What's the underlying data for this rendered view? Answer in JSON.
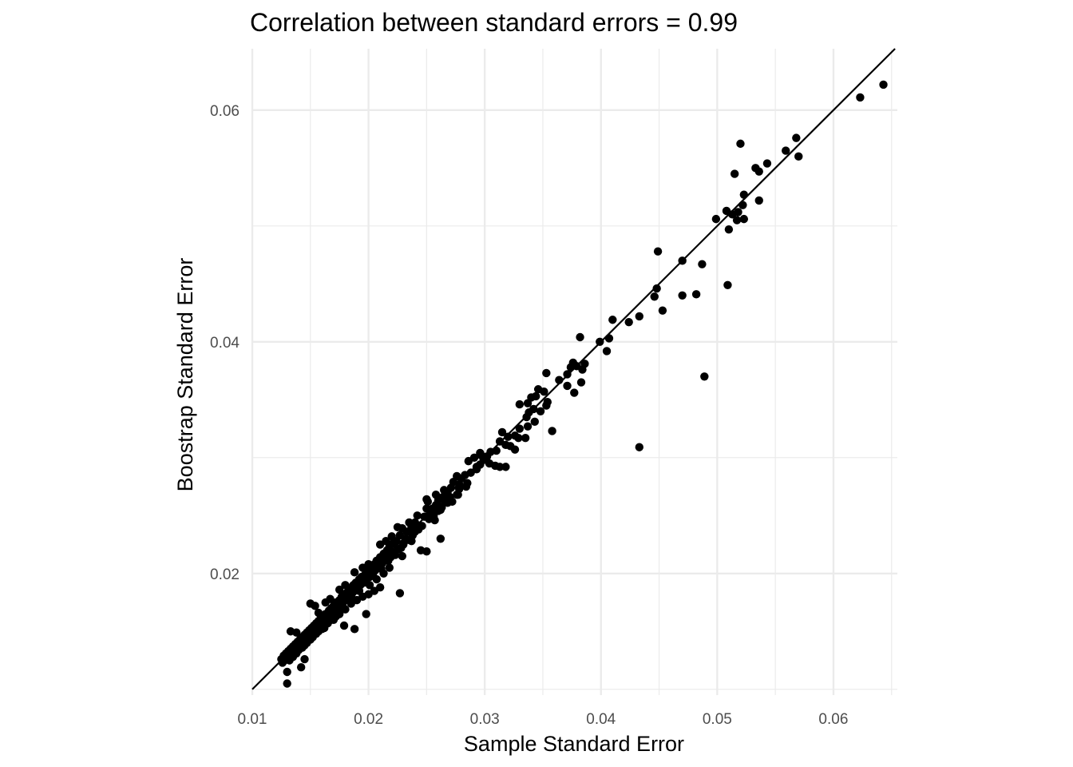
{
  "chart_data": {
    "type": "scatter",
    "title": "Correlation between standard errors = 0.99",
    "xlabel": "Sample Standard Error",
    "ylabel": "Boostrap Standard Error",
    "xlim": [
      0.01,
      0.0655
    ],
    "ylim": [
      0.0095,
      0.0653
    ],
    "x_ticks": [
      "0.01",
      "0.02",
      "0.03",
      "0.04",
      "0.05",
      "0.06"
    ],
    "x_tick_values": [
      0.01,
      0.02,
      0.03,
      0.04,
      0.05,
      0.06
    ],
    "y_ticks": [
      "0.02",
      "0.04",
      "0.06"
    ],
    "y_tick_values": [
      0.02,
      0.04,
      0.06
    ],
    "grid": true,
    "reference_line": {
      "intercept": 0,
      "slope": 1
    },
    "point_color": "#000000",
    "line_color": "#000000",
    "grid_color": "#ebebeb",
    "points": [
      [
        0.0643,
        0.0622
      ],
      [
        0.0623,
        0.0611
      ],
      [
        0.0568,
        0.0576
      ],
      [
        0.057,
        0.056
      ],
      [
        0.0559,
        0.0565
      ],
      [
        0.052,
        0.0571
      ],
      [
        0.0543,
        0.0554
      ],
      [
        0.0533,
        0.055
      ],
      [
        0.0536,
        0.0547
      ],
      [
        0.0515,
        0.0545
      ],
      [
        0.0523,
        0.0527
      ],
      [
        0.0536,
        0.0522
      ],
      [
        0.0522,
        0.0518
      ],
      [
        0.0518,
        0.0512
      ],
      [
        0.0508,
        0.0513
      ],
      [
        0.0513,
        0.051
      ],
      [
        0.0517,
        0.0505
      ],
      [
        0.0523,
        0.0506
      ],
      [
        0.0499,
        0.0506
      ],
      [
        0.051,
        0.0497
      ],
      [
        0.0449,
        0.0478
      ],
      [
        0.047,
        0.047
      ],
      [
        0.0487,
        0.0467
      ],
      [
        0.0448,
        0.0446
      ],
      [
        0.0509,
        0.0449
      ],
      [
        0.0446,
        0.0439
      ],
      [
        0.047,
        0.044
      ],
      [
        0.0482,
        0.0441
      ],
      [
        0.0453,
        0.0427
      ],
      [
        0.0433,
        0.0422
      ],
      [
        0.041,
        0.0419
      ],
      [
        0.0424,
        0.0417
      ],
      [
        0.0382,
        0.0404
      ],
      [
        0.0407,
        0.0403
      ],
      [
        0.0399,
        0.04
      ],
      [
        0.0405,
        0.0392
      ],
      [
        0.0489,
        0.037
      ],
      [
        0.0433,
        0.0309
      ],
      [
        0.0376,
        0.0382
      ],
      [
        0.0386,
        0.0381
      ],
      [
        0.0379,
        0.0379
      ],
      [
        0.0384,
        0.0376
      ],
      [
        0.0374,
        0.0378
      ],
      [
        0.0371,
        0.0372
      ],
      [
        0.0364,
        0.0367
      ],
      [
        0.0371,
        0.0362
      ],
      [
        0.0383,
        0.0365
      ],
      [
        0.0377,
        0.0356
      ],
      [
        0.0353,
        0.0373
      ],
      [
        0.0346,
        0.0359
      ],
      [
        0.0351,
        0.0357
      ],
      [
        0.034,
        0.0352
      ],
      [
        0.0344,
        0.0353
      ],
      [
        0.0337,
        0.0347
      ],
      [
        0.033,
        0.0346
      ],
      [
        0.0354,
        0.0348
      ],
      [
        0.0342,
        0.0342
      ],
      [
        0.0338,
        0.0339
      ],
      [
        0.0348,
        0.034
      ],
      [
        0.0336,
        0.0335
      ],
      [
        0.0343,
        0.0331
      ],
      [
        0.0337,
        0.0327
      ],
      [
        0.033,
        0.0325
      ],
      [
        0.0353,
        0.0345
      ],
      [
        0.0358,
        0.0323
      ],
      [
        0.0315,
        0.0322
      ],
      [
        0.032,
        0.0318
      ],
      [
        0.0326,
        0.0319
      ],
      [
        0.0313,
        0.0314
      ],
      [
        0.0329,
        0.0317
      ],
      [
        0.0335,
        0.0317
      ],
      [
        0.0322,
        0.031
      ],
      [
        0.0318,
        0.0311
      ],
      [
        0.0326,
        0.0307
      ],
      [
        0.031,
        0.0306
      ],
      [
        0.0305,
        0.0305
      ],
      [
        0.0296,
        0.0304
      ],
      [
        0.0302,
        0.0301
      ],
      [
        0.0299,
        0.0298
      ],
      [
        0.0304,
        0.0295
      ],
      [
        0.0296,
        0.0294
      ],
      [
        0.0309,
        0.0293
      ],
      [
        0.0313,
        0.0292
      ],
      [
        0.0318,
        0.0292
      ],
      [
        0.0293,
        0.029
      ],
      [
        0.0288,
        0.0287
      ],
      [
        0.0283,
        0.0285
      ],
      [
        0.0276,
        0.0284
      ],
      [
        0.028,
        0.0282
      ],
      [
        0.0273,
        0.0279
      ],
      [
        0.0278,
        0.0277
      ],
      [
        0.0285,
        0.0278
      ],
      [
        0.0271,
        0.0274
      ],
      [
        0.0278,
        0.0273
      ],
      [
        0.0268,
        0.027
      ],
      [
        0.0277,
        0.0268
      ],
      [
        0.0264,
        0.0266
      ],
      [
        0.027,
        0.0266
      ],
      [
        0.026,
        0.0263
      ],
      [
        0.0266,
        0.0262
      ],
      [
        0.0258,
        0.0259
      ],
      [
        0.0263,
        0.0257
      ],
      [
        0.0272,
        0.0262
      ],
      [
        0.0255,
        0.0256
      ],
      [
        0.026,
        0.0254
      ],
      [
        0.025,
        0.0256
      ],
      [
        0.0256,
        0.025
      ],
      [
        0.0252,
        0.0247
      ],
      [
        0.0248,
        0.0249
      ],
      [
        0.0253,
        0.0252
      ],
      [
        0.0257,
        0.0246
      ],
      [
        0.0251,
        0.0262
      ],
      [
        0.0246,
        0.0241
      ],
      [
        0.024,
        0.0244
      ],
      [
        0.0243,
        0.0238
      ],
      [
        0.0237,
        0.024
      ],
      [
        0.0233,
        0.0236
      ],
      [
        0.0238,
        0.0233
      ],
      [
        0.0229,
        0.0239
      ],
      [
        0.0232,
        0.023
      ],
      [
        0.0227,
        0.0233
      ],
      [
        0.0224,
        0.0228
      ],
      [
        0.023,
        0.0225
      ],
      [
        0.0221,
        0.0226
      ],
      [
        0.0226,
        0.0221
      ],
      [
        0.0218,
        0.0223
      ],
      [
        0.0222,
        0.0218
      ],
      [
        0.0216,
        0.022
      ],
      [
        0.0219,
        0.0214
      ],
      [
        0.0213,
        0.0217
      ],
      [
        0.0215,
        0.0212
      ],
      [
        0.021,
        0.0214
      ],
      [
        0.0212,
        0.0209
      ],
      [
        0.0207,
        0.0211
      ],
      [
        0.0209,
        0.0206
      ],
      [
        0.0205,
        0.0208
      ],
      [
        0.0206,
        0.0203
      ],
      [
        0.0202,
        0.0205
      ],
      [
        0.0204,
        0.02
      ],
      [
        0.0199,
        0.0202
      ],
      [
        0.0201,
        0.0197
      ],
      [
        0.0197,
        0.0199
      ],
      [
        0.0198,
        0.0195
      ],
      [
        0.0194,
        0.0197
      ],
      [
        0.0196,
        0.0192
      ],
      [
        0.0192,
        0.0195
      ],
      [
        0.0193,
        0.019
      ],
      [
        0.0189,
        0.0192
      ],
      [
        0.0191,
        0.0188
      ],
      [
        0.0187,
        0.019
      ],
      [
        0.0188,
        0.0185
      ],
      [
        0.0184,
        0.0187
      ],
      [
        0.0186,
        0.0183
      ],
      [
        0.0182,
        0.0184
      ],
      [
        0.0183,
        0.018
      ],
      [
        0.0179,
        0.0182
      ],
      [
        0.0181,
        0.0178
      ],
      [
        0.0177,
        0.018
      ],
      [
        0.0178,
        0.0175
      ],
      [
        0.0175,
        0.0177
      ],
      [
        0.0176,
        0.0173
      ],
      [
        0.0172,
        0.0175
      ],
      [
        0.0174,
        0.0171
      ],
      [
        0.017,
        0.0172
      ],
      [
        0.0171,
        0.0168
      ],
      [
        0.0168,
        0.017
      ],
      [
        0.0169,
        0.0166
      ],
      [
        0.0166,
        0.0168
      ],
      [
        0.0167,
        0.0164
      ],
      [
        0.0163,
        0.0165
      ],
      [
        0.0165,
        0.0162
      ],
      [
        0.0161,
        0.0163
      ],
      [
        0.0162,
        0.016
      ],
      [
        0.0159,
        0.0161
      ],
      [
        0.016,
        0.0157
      ],
      [
        0.0157,
        0.0159
      ],
      [
        0.0158,
        0.0155
      ],
      [
        0.0155,
        0.0157
      ],
      [
        0.0156,
        0.0153
      ],
      [
        0.0153,
        0.0155
      ],
      [
        0.0154,
        0.0151
      ],
      [
        0.0151,
        0.0153
      ],
      [
        0.0152,
        0.0149
      ],
      [
        0.0149,
        0.0151
      ],
      [
        0.015,
        0.0147
      ],
      [
        0.0147,
        0.0149
      ],
      [
        0.0148,
        0.0145
      ],
      [
        0.0145,
        0.0147
      ],
      [
        0.0146,
        0.0143
      ],
      [
        0.0143,
        0.0145
      ],
      [
        0.0144,
        0.0141
      ],
      [
        0.0141,
        0.0143
      ],
      [
        0.0142,
        0.0139
      ],
      [
        0.0139,
        0.0141
      ],
      [
        0.014,
        0.0137
      ],
      [
        0.0137,
        0.0139
      ],
      [
        0.0138,
        0.0135
      ],
      [
        0.0135,
        0.0137
      ],
      [
        0.0136,
        0.0133
      ],
      [
        0.0133,
        0.0135
      ],
      [
        0.0134,
        0.0131
      ],
      [
        0.0131,
        0.0133
      ],
      [
        0.0132,
        0.0129
      ],
      [
        0.0129,
        0.0131
      ],
      [
        0.013,
        0.0127
      ],
      [
        0.0127,
        0.0129
      ],
      [
        0.0128,
        0.0125
      ],
      [
        0.0125,
        0.0126
      ],
      [
        0.0126,
        0.0123
      ],
      [
        0.013,
        0.0115
      ],
      [
        0.013,
        0.0105
      ],
      [
        0.0133,
        0.015
      ],
      [
        0.0138,
        0.0149
      ],
      [
        0.0142,
        0.0119
      ],
      [
        0.0145,
        0.0126
      ],
      [
        0.015,
        0.0174
      ],
      [
        0.0154,
        0.0172
      ],
      [
        0.0157,
        0.0166
      ],
      [
        0.0163,
        0.0175
      ],
      [
        0.0167,
        0.0178
      ],
      [
        0.0175,
        0.0186
      ],
      [
        0.018,
        0.019
      ],
      [
        0.0188,
        0.0201
      ],
      [
        0.0195,
        0.0205
      ],
      [
        0.02,
        0.0208
      ],
      [
        0.021,
        0.0225
      ],
      [
        0.0215,
        0.0228
      ],
      [
        0.022,
        0.0232
      ],
      [
        0.0225,
        0.024
      ],
      [
        0.0235,
        0.0244
      ],
      [
        0.0242,
        0.025
      ],
      [
        0.025,
        0.0264
      ],
      [
        0.0258,
        0.0268
      ],
      [
        0.0265,
        0.0272
      ],
      [
        0.0286,
        0.0297
      ],
      [
        0.0291,
        0.03
      ],
      [
        0.0297,
        0.0302
      ],
      [
        0.021,
        0.0188
      ],
      [
        0.0205,
        0.0185
      ],
      [
        0.02,
        0.0182
      ],
      [
        0.0195,
        0.018
      ],
      [
        0.019,
        0.0177
      ],
      [
        0.0185,
        0.0174
      ],
      [
        0.018,
        0.0169
      ],
      [
        0.0175,
        0.0165
      ],
      [
        0.017,
        0.016
      ],
      [
        0.0165,
        0.0157
      ],
      [
        0.016,
        0.0152
      ],
      [
        0.0155,
        0.0148
      ],
      [
        0.015,
        0.0143
      ],
      [
        0.0145,
        0.0138
      ],
      [
        0.014,
        0.0134
      ],
      [
        0.0227,
        0.0183
      ],
      [
        0.0198,
        0.0165
      ],
      [
        0.0188,
        0.0152
      ],
      [
        0.0179,
        0.0155
      ],
      [
        0.0245,
        0.022
      ],
      [
        0.0262,
        0.023
      ],
      [
        0.025,
        0.0219
      ],
      [
        0.0237,
        0.0228
      ],
      [
        0.0229,
        0.0215
      ],
      [
        0.0218,
        0.0205
      ],
      [
        0.0213,
        0.02
      ],
      [
        0.0207,
        0.0195
      ],
      [
        0.0201,
        0.019
      ],
      [
        0.0192,
        0.0185
      ],
      [
        0.0186,
        0.0178
      ],
      [
        0.0172,
        0.0163
      ],
      [
        0.0168,
        0.016
      ],
      [
        0.0162,
        0.0153
      ],
      [
        0.0157,
        0.015
      ],
      [
        0.0152,
        0.0145
      ],
      [
        0.0147,
        0.014
      ],
      [
        0.0143,
        0.0136
      ],
      [
        0.0138,
        0.0131
      ],
      [
        0.0135,
        0.0128
      ],
      [
        0.0132,
        0.0125
      ],
      [
        0.0284,
        0.0275
      ],
      [
        0.0293,
        0.0292
      ],
      [
        0.0276,
        0.0268
      ],
      [
        0.0268,
        0.0261
      ],
      [
        0.0262,
        0.0255
      ],
      [
        0.0256,
        0.0249
      ],
      [
        0.024,
        0.0236
      ],
      [
        0.0234,
        0.0229
      ],
      [
        0.0228,
        0.0222
      ],
      [
        0.0223,
        0.0216
      ],
      [
        0.0217,
        0.0211
      ],
      [
        0.0211,
        0.0204
      ],
      [
        0.0184,
        0.0176
      ],
      [
        0.0178,
        0.0171
      ],
      [
        0.0173,
        0.0167
      ]
    ]
  }
}
